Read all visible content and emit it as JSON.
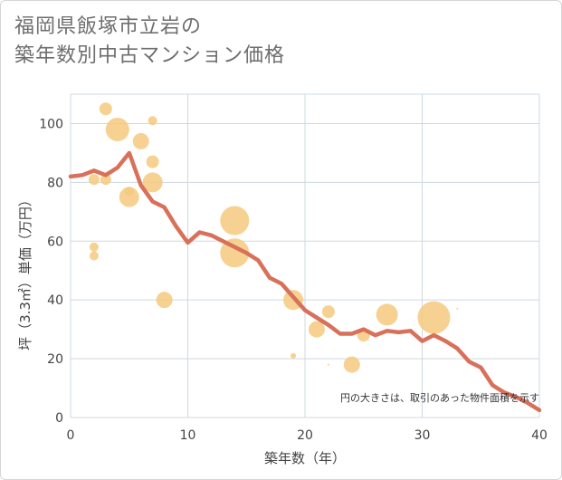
{
  "title_line1": "福岡県飯塚市立岩の",
  "title_line2": "築年数別中古マンション価格",
  "chart_data": {
    "type": "scatter",
    "xlabel": "築年数（年）",
    "ylabel": "坪（3.3㎡）単価（万円）",
    "xlim": [
      0,
      40
    ],
    "ylim": [
      0,
      110
    ],
    "xticks": [
      0,
      10,
      20,
      30,
      40
    ],
    "yticks": [
      0,
      20,
      40,
      60,
      80,
      100
    ],
    "grid": true,
    "note": "円の大きさは、取引のあった物件面積を示す",
    "colors": {
      "bubble": "#f5c97e",
      "line": "#d8705a",
      "grid": "#cfd8e0"
    },
    "bubbles": [
      {
        "x": 2,
        "y": 81,
        "size": 6
      },
      {
        "x": 2,
        "y": 58,
        "size": 5
      },
      {
        "x": 2,
        "y": 55,
        "size": 5
      },
      {
        "x": 3,
        "y": 105,
        "size": 7
      },
      {
        "x": 3,
        "y": 81,
        "size": 6
      },
      {
        "x": 4,
        "y": 98,
        "size": 13
      },
      {
        "x": 5,
        "y": 77,
        "size": 5
      },
      {
        "x": 5,
        "y": 75,
        "size": 11
      },
      {
        "x": 6,
        "y": 94,
        "size": 9
      },
      {
        "x": 7,
        "y": 101,
        "size": 5
      },
      {
        "x": 7,
        "y": 87,
        "size": 7
      },
      {
        "x": 7,
        "y": 80,
        "size": 11
      },
      {
        "x": 8,
        "y": 40,
        "size": 9
      },
      {
        "x": 14,
        "y": 67,
        "size": 16
      },
      {
        "x": 14,
        "y": 56,
        "size": 16
      },
      {
        "x": 19,
        "y": 40,
        "size": 11
      },
      {
        "x": 19,
        "y": 21,
        "size": 3
      },
      {
        "x": 21,
        "y": 30,
        "size": 9
      },
      {
        "x": 22,
        "y": 36,
        "size": 7
      },
      {
        "x": 22,
        "y": 18,
        "size": 1
      },
      {
        "x": 24,
        "y": 18,
        "size": 9
      },
      {
        "x": 25,
        "y": 28,
        "size": 7
      },
      {
        "x": 27,
        "y": 35,
        "size": 12
      },
      {
        "x": 31,
        "y": 34,
        "size": 18
      },
      {
        "x": 33,
        "y": 37,
        "size": 1
      }
    ],
    "series": [
      {
        "x": [
          0,
          1,
          2,
          3,
          4,
          5,
          6,
          7,
          8,
          9,
          10,
          11,
          12,
          13,
          14,
          15,
          16,
          17,
          18,
          19,
          20,
          21,
          22,
          23,
          24,
          25,
          26,
          27,
          28,
          29,
          30,
          31,
          32,
          33,
          34,
          35,
          36,
          37,
          38,
          39,
          40
        ],
        "values": [
          82,
          82.5,
          84,
          82.5,
          85,
          90,
          79,
          73.5,
          71.5,
          65,
          59.5,
          63,
          62,
          60,
          58,
          56,
          53.5,
          47.5,
          45.5,
          41,
          36.5,
          34,
          31.5,
          28.5,
          28.5,
          30,
          28,
          29.5,
          29,
          29.5,
          26,
          28,
          26,
          23.5,
          19,
          17,
          11,
          8.5,
          7,
          5,
          2.5
        ]
      }
    ]
  }
}
